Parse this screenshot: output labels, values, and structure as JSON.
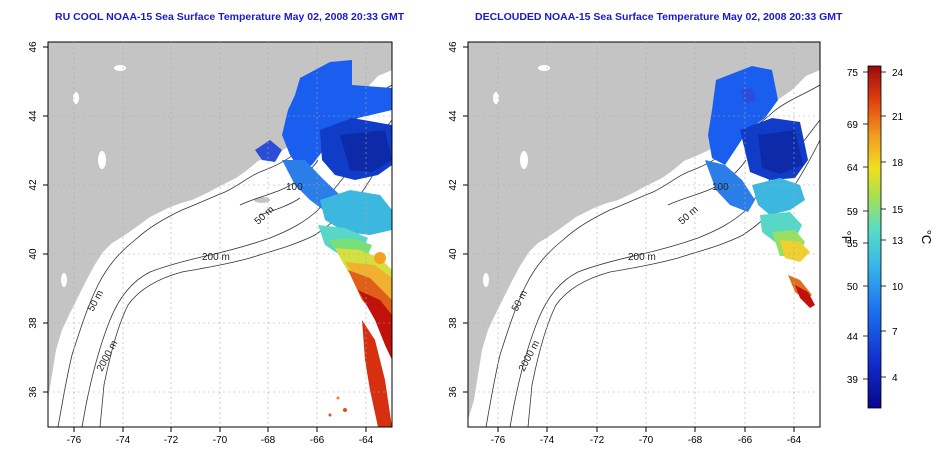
{
  "maps": [
    {
      "title": "RU COOL NOAA-15 Sea Surface Temperature May 02, 2008 20:33 GMT",
      "lon_ticks": [
        "-76",
        "-74",
        "-72",
        "-70",
        "-68",
        "-66",
        "-64"
      ],
      "lat_ticks": [
        "46",
        "44",
        "42",
        "40",
        "38",
        "36"
      ],
      "contour_labels": [
        "50 m",
        "200 m",
        "50 m",
        "2000 m",
        "100"
      ]
    },
    {
      "title": "DECLOUDED NOAA-15 Sea Surface Temperature May 02, 2008 20:33 GMT",
      "lon_ticks": [
        "-76",
        "-74",
        "-72",
        "-70",
        "-68",
        "-66",
        "-64"
      ],
      "lat_ticks": [
        "46",
        "44",
        "42",
        "40",
        "38",
        "36"
      ],
      "contour_labels": [
        "50 m",
        "200 m",
        "50 m",
        "2000 m",
        "100"
      ]
    }
  ],
  "colorbar": {
    "f_label": "°F",
    "c_label": "°C",
    "f_ticks": [
      "75",
      "69",
      "64",
      "59",
      "55",
      "50",
      "44",
      "39"
    ],
    "c_ticks": [
      "24",
      "21",
      "18",
      "15",
      "13",
      "10",
      "7",
      "4"
    ]
  },
  "colors": {
    "land": "#c4c4c4",
    "water": "#ffffff",
    "title": "#1a1acc",
    "cold": "#0b1a9c",
    "warm": "#c0120a"
  }
}
